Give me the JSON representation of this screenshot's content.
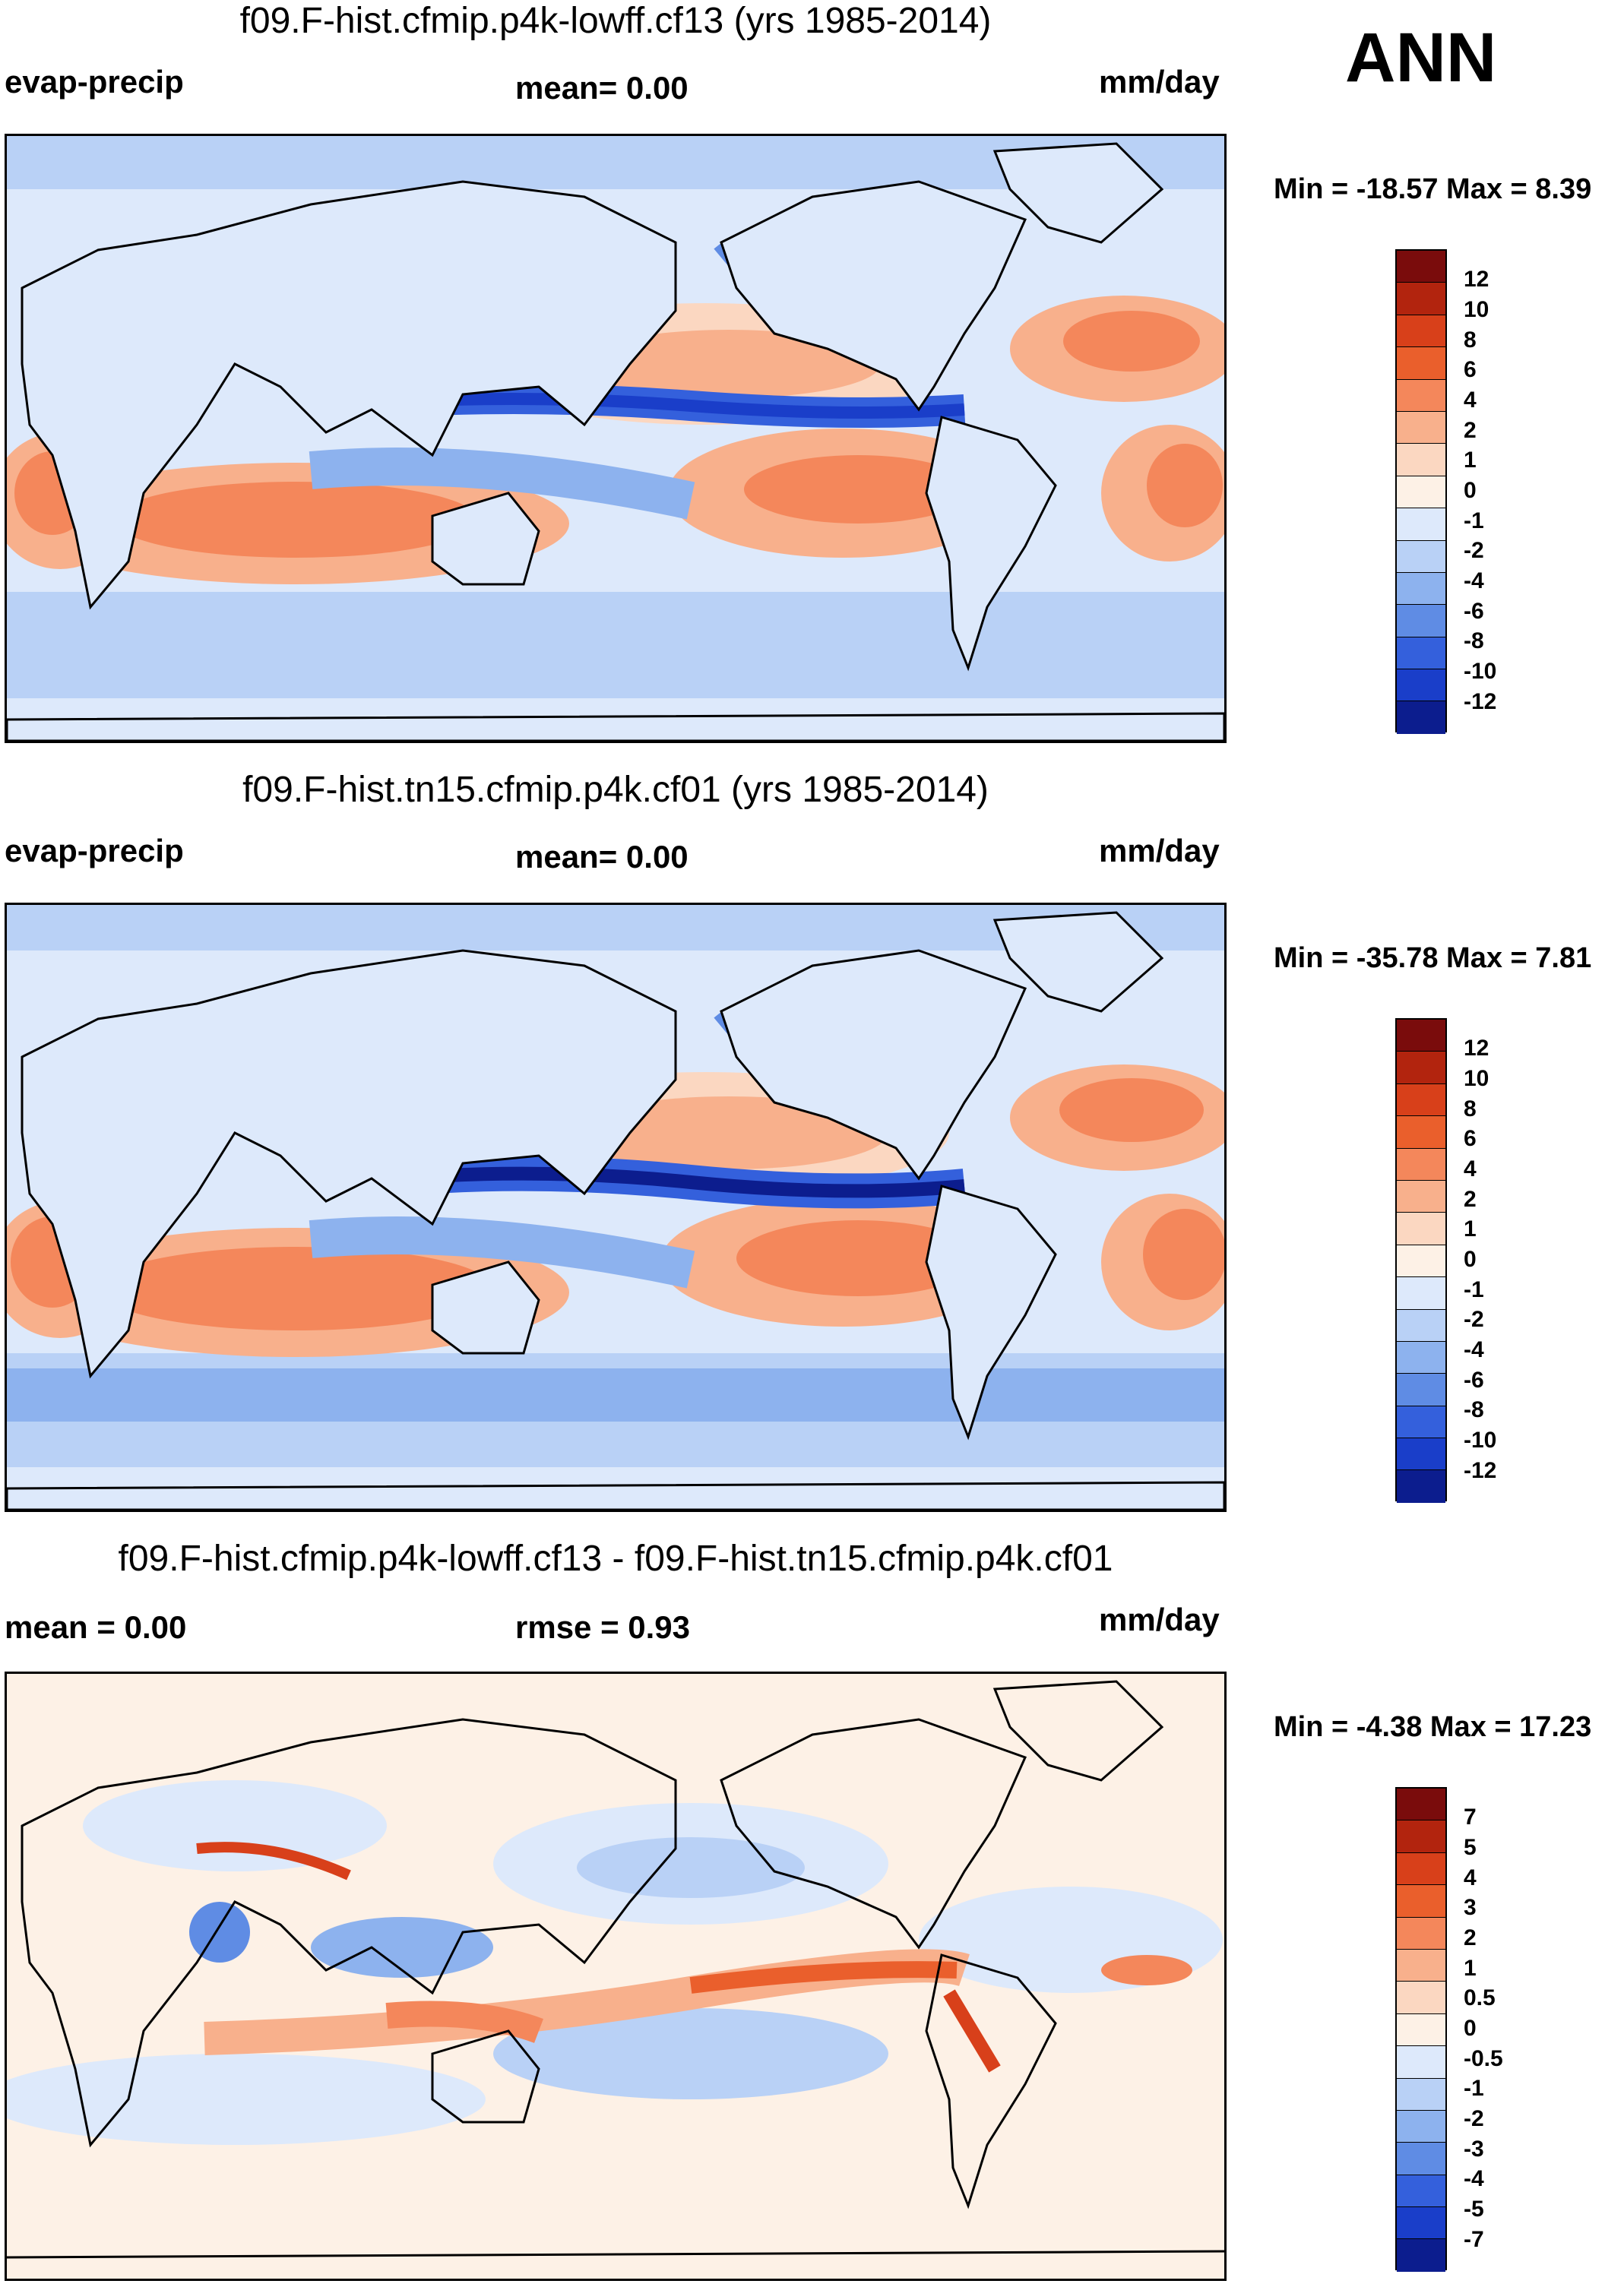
{
  "season": "ANN",
  "panels": [
    {
      "title": "f09.F-hist.cfmip.p4k-lowff.cf13 (yrs 1985-2014)",
      "left_label": "evap-precip",
      "center_label": "mean=   0.00",
      "right_label": "mm/day",
      "minmax": "Min = -18.57 Max =   8.39",
      "levels": [
        "12",
        "10",
        "8",
        "6",
        "4",
        "2",
        "1",
        "0",
        "-1",
        "-2",
        "-4",
        "-6",
        "-8",
        "-10",
        "-12"
      ]
    },
    {
      "title": "f09.F-hist.tn15.cfmip.p4k.cf01 (yrs 1985-2014)",
      "left_label": "evap-precip",
      "center_label": "mean=   0.00",
      "right_label": "mm/day",
      "minmax": "Min = -35.78 Max =   7.81",
      "levels": [
        "12",
        "10",
        "8",
        "6",
        "4",
        "2",
        "1",
        "0",
        "-1",
        "-2",
        "-4",
        "-6",
        "-8",
        "-10",
        "-12"
      ]
    },
    {
      "title": "f09.F-hist.cfmip.p4k-lowff.cf13 - f09.F-hist.tn15.cfmip.p4k.cf01",
      "left_label": "mean =   0.00",
      "center_label": "rmse =   0.93",
      "right_label": "mm/day",
      "minmax": "Min =  -4.38 Max =  17.23",
      "levels": [
        "7",
        "5",
        "4",
        "3",
        "2",
        "1",
        "0.5",
        "0",
        "-0.5",
        "-1",
        "-2",
        "-3",
        "-4",
        "-5",
        "-7"
      ]
    }
  ],
  "chart_data": [
    {
      "type": "heatmap",
      "title": "f09.F-hist.cfmip.p4k-lowff.cf13 (yrs 1985-2014)",
      "variable": "evap-precip",
      "units": "mm/day",
      "mean": 0.0,
      "min": -18.57,
      "max": 8.39,
      "contour_levels": [
        -12,
        -10,
        -8,
        -6,
        -4,
        -2,
        -1,
        0,
        1,
        2,
        4,
        6,
        8,
        10,
        12
      ]
    },
    {
      "type": "heatmap",
      "title": "f09.F-hist.tn15.cfmip.p4k.cf01 (yrs 1985-2014)",
      "variable": "evap-precip",
      "units": "mm/day",
      "mean": 0.0,
      "min": -35.78,
      "max": 7.81,
      "contour_levels": [
        -12,
        -10,
        -8,
        -6,
        -4,
        -2,
        -1,
        0,
        1,
        2,
        4,
        6,
        8,
        10,
        12
      ]
    },
    {
      "type": "heatmap",
      "title": "f09.F-hist.cfmip.p4k-lowff.cf13 - f09.F-hist.tn15.cfmip.p4k.cf01",
      "units": "mm/day",
      "mean": 0.0,
      "rmse": 0.93,
      "min": -4.38,
      "max": 17.23,
      "contour_levels": [
        -7,
        -5,
        -4,
        -3,
        -2,
        -1,
        -0.5,
        0,
        0.5,
        1,
        2,
        3,
        4,
        5,
        7
      ]
    }
  ],
  "colors": {
    "fill_abs": [
      "#7a0c0c",
      "#b2240e",
      "#d8401a",
      "#ea5f2c",
      "#f4875b",
      "#f8b08c",
      "#fbd7c1",
      "#fdf1e6",
      "#dde9fb",
      "#b9d1f6",
      "#8db2ee",
      "#5f8ce4",
      "#3460dc",
      "#1a3ec9",
      "#0c1d8e"
    ],
    "fill_diff": [
      "#7a0c0c",
      "#b2240e",
      "#d8401a",
      "#ea5f2c",
      "#f4875b",
      "#f8b08c",
      "#fbd7c1",
      "#fdf1e6",
      "#dde9fb",
      "#b9d1f6",
      "#8db2ee",
      "#5f8ce4",
      "#3460dc",
      "#1a3ec9",
      "#0c1d8e"
    ]
  }
}
